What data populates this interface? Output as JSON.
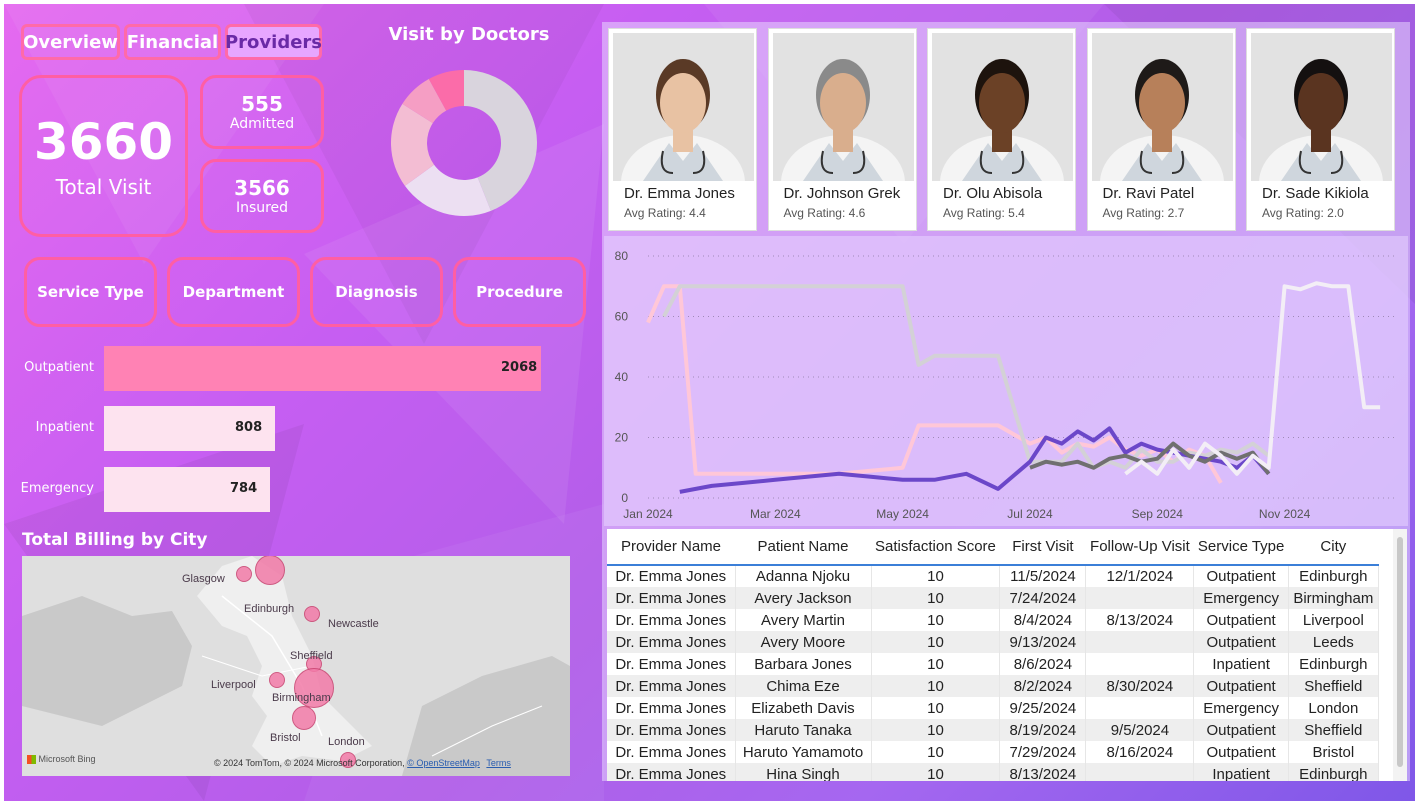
{
  "tabs": [
    {
      "label": "Overview"
    },
    {
      "label": "Financial"
    },
    {
      "label": "Providers",
      "active": true
    }
  ],
  "kpis": {
    "total_visit": {
      "value": "3660",
      "label": "Total Visit"
    },
    "admitted": {
      "value": "555",
      "label": "Admitted"
    },
    "insured": {
      "value": "3566",
      "label": "Insured"
    }
  },
  "slicers": [
    "Service Type",
    "Department",
    "Diagnosis",
    "Procedure"
  ],
  "service_bars": [
    {
      "label": "Outpatient",
      "value": 2068,
      "display": "2068",
      "color": "#ff82b4"
    },
    {
      "label": "Inpatient",
      "value": 808,
      "display": "808",
      "color": "#fde3ef"
    },
    {
      "label": "Emergency",
      "value": 784,
      "display": "784",
      "color": "#fde3ef"
    }
  ],
  "donut": {
    "title": "Visit by Doctors",
    "slices": [
      {
        "value": 44,
        "color": "#d9d4dd"
      },
      {
        "value": 21,
        "color": "#ecdff2"
      },
      {
        "value": 19,
        "color": "#f3bdd3"
      },
      {
        "value": 8,
        "color": "#f59ec4"
      },
      {
        "value": 8,
        "color": "#fb6ca9"
      }
    ]
  },
  "map": {
    "title": "Total Billing by City",
    "cities": [
      {
        "name": "Glasgow"
      },
      {
        "name": "Edinburgh"
      },
      {
        "name": "Newcastle"
      },
      {
        "name": "Sheffield"
      },
      {
        "name": "Liverpool"
      },
      {
        "name": "Birmingham"
      },
      {
        "name": "Bristol"
      },
      {
        "name": "London"
      }
    ],
    "brand": "Microsoft Bing",
    "attribution": "© 2024 TomTom, © 2024 Microsoft Corporation,",
    "osm_link": "© OpenStreetMap",
    "terms_link": "Terms"
  },
  "doctors": [
    {
      "name": "Dr. Emma Jones",
      "rating": "Avg Rating: 4.4",
      "skin": "#e8c2a3",
      "hair": "#5a3a26"
    },
    {
      "name": "Dr. Johnson Grek",
      "rating": "Avg Rating: 4.6",
      "skin": "#d9ae8d",
      "hair": "#8a8a8a"
    },
    {
      "name": "Dr. Olu Abisola",
      "rating": "Avg Rating: 5.4",
      "skin": "#6b4126",
      "hair": "#1d130d"
    },
    {
      "name": "Dr. Ravi Patel",
      "rating": "Avg Rating: 2.7",
      "skin": "#b7805a",
      "hair": "#1e1a18"
    },
    {
      "name": "Dr. Sade Kikiola",
      "rating": "Avg Rating: 2.0",
      "skin": "#5a3420",
      "hair": "#141010"
    }
  ],
  "chart_data": {
    "type": "line",
    "title": "",
    "xlabel": "",
    "ylabel": "",
    "ylim": [
      0,
      80
    ],
    "yticks": [
      "0",
      "20",
      "40",
      "60",
      "80"
    ],
    "xticks": [
      "Jan 2024",
      "Mar 2024",
      "May 2024",
      "Jul 2024",
      "Sep 2024",
      "Nov 2024"
    ],
    "x": [
      0,
      0.25,
      0.5,
      0.75,
      1,
      1.5,
      2,
      2.5,
      3,
      3.5,
      4,
      4.25,
      4.5,
      5,
      5.5,
      6,
      6.25,
      6.5,
      6.75,
      7,
      7.25,
      7.5,
      7.75,
      8,
      8.25,
      8.5,
      8.75,
      9,
      9.25,
      9.5,
      9.75,
      10,
      10.25,
      10.5,
      10.75,
      11,
      11.25,
      11.5
    ],
    "series": [
      {
        "color": "#ffc7d8",
        "values": [
          58,
          70,
          70,
          8,
          8,
          8,
          8,
          8,
          8,
          9,
          10,
          24,
          24,
          24,
          24,
          18,
          20,
          15,
          18,
          17,
          20,
          16,
          14,
          16,
          12,
          16,
          14,
          5,
          null,
          null,
          null,
          null,
          null,
          null,
          null,
          null,
          null,
          null
        ]
      },
      {
        "color": "#d3d1d6",
        "values": [
          null,
          60,
          70,
          70,
          70,
          70,
          70,
          70,
          70,
          70,
          70,
          44,
          47,
          47,
          47,
          12,
          12,
          12,
          18,
          10,
          12,
          10,
          16,
          12,
          12,
          15,
          14,
          16,
          15,
          18,
          14,
          null,
          null,
          null,
          null,
          null,
          null,
          null
        ]
      },
      {
        "color": "#6b47c9",
        "values": [
          null,
          null,
          2,
          3,
          4,
          5,
          6,
          7,
          8,
          7,
          6,
          6,
          6,
          8,
          3,
          12,
          20,
          18,
          22,
          19,
          23,
          15,
          18,
          16,
          15,
          14,
          13,
          12,
          10,
          14,
          8,
          null,
          null,
          null,
          null,
          null,
          null,
          null
        ]
      },
      {
        "color": "#707070",
        "values": [
          null,
          null,
          null,
          null,
          null,
          null,
          null,
          null,
          null,
          null,
          null,
          null,
          null,
          null,
          null,
          10,
          12,
          11,
          12,
          10,
          13,
          14,
          12,
          13,
          18,
          14,
          12,
          15,
          13,
          15,
          8,
          null,
          null,
          null,
          null,
          null,
          null,
          null
        ]
      },
      {
        "color": "#f3eef6",
        "values": [
          null,
          null,
          null,
          null,
          null,
          null,
          null,
          null,
          null,
          null,
          null,
          null,
          null,
          null,
          null,
          null,
          null,
          null,
          null,
          null,
          null,
          8,
          12,
          8,
          16,
          10,
          18,
          14,
          8,
          14,
          10,
          70,
          69,
          71,
          70,
          70,
          30,
          30
        ]
      }
    ]
  },
  "table": {
    "columns": [
      "Provider Name",
      "Patient Name",
      "Satisfaction Score",
      "First Visit",
      "Follow-Up Visit",
      "Service Type",
      "City"
    ],
    "rows": [
      [
        "Dr. Emma Jones",
        "Adanna Njoku",
        "10",
        "11/5/2024",
        "12/1/2024",
        "Outpatient",
        "Edinburgh"
      ],
      [
        "Dr. Emma Jones",
        "Avery Jackson",
        "10",
        "7/24/2024",
        "",
        "Emergency",
        "Birmingham"
      ],
      [
        "Dr. Emma Jones",
        "Avery Martin",
        "10",
        "8/4/2024",
        "8/13/2024",
        "Outpatient",
        "Liverpool"
      ],
      [
        "Dr. Emma Jones",
        "Avery Moore",
        "10",
        "9/13/2024",
        "",
        "Outpatient",
        "Leeds"
      ],
      [
        "Dr. Emma Jones",
        "Barbara Jones",
        "10",
        "8/6/2024",
        "",
        "Inpatient",
        "Edinburgh"
      ],
      [
        "Dr. Emma Jones",
        "Chima Eze",
        "10",
        "8/2/2024",
        "8/30/2024",
        "Outpatient",
        "Sheffield"
      ],
      [
        "Dr. Emma Jones",
        "Elizabeth Davis",
        "10",
        "9/25/2024",
        "",
        "Emergency",
        "London"
      ],
      [
        "Dr. Emma Jones",
        "Haruto Tanaka",
        "10",
        "8/19/2024",
        "9/5/2024",
        "Outpatient",
        "Sheffield"
      ],
      [
        "Dr. Emma Jones",
        "Haruto Yamamoto",
        "10",
        "7/29/2024",
        "8/16/2024",
        "Outpatient",
        "Bristol"
      ],
      [
        "Dr. Emma Jones",
        "Hina Singh",
        "10",
        "8/13/2024",
        "",
        "Inpatient",
        "Edinburgh"
      ]
    ]
  }
}
